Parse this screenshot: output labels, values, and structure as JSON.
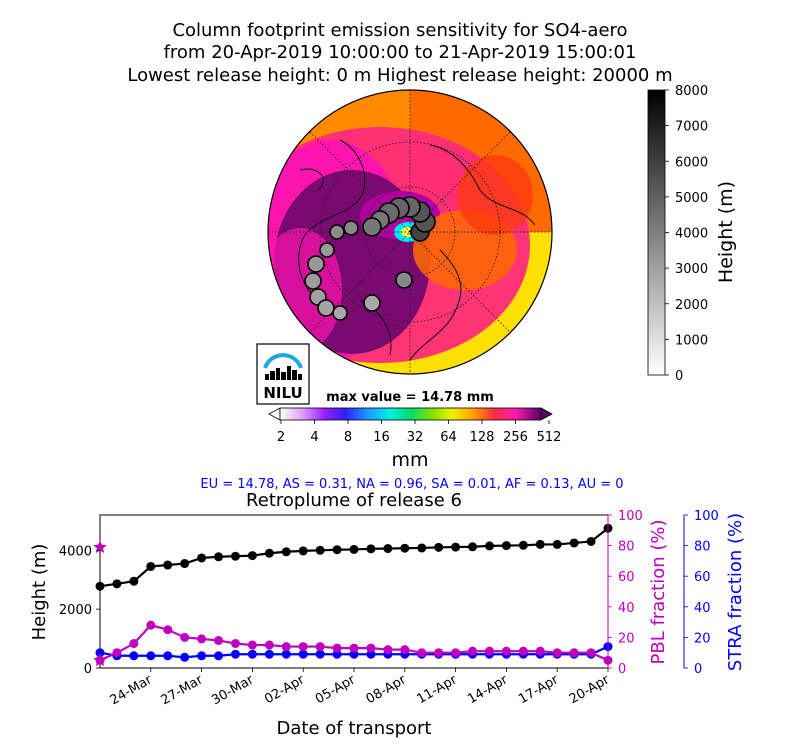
{
  "header": {
    "title_line1": "Column footprint emission sensitivity for SO4-aero",
    "title_line2": "from 20-Apr-2019 10:00:00 to 21-Apr-2019 15:00:01",
    "title_line3": "Lowest release height: 0 m       Highest release height: 20000 m"
  },
  "logo": {
    "text": "NILU"
  },
  "map": {
    "max_value_label": "max value = 14.78 mm",
    "colorbar_unit": "mm",
    "colorbar_ticks": [
      "2",
      "4",
      "8",
      "16",
      "32",
      "64",
      "128",
      "256",
      "512"
    ],
    "height_colorbar_label": "Height (m)",
    "height_colorbar_ticks": [
      "0",
      "1000",
      "2000",
      "3000",
      "4000",
      "5000",
      "6000",
      "7000",
      "8000"
    ]
  },
  "region_summary": "EU = 14.78,  AS = 0.31,  NA = 0.96,  SA = 0.01,  AF = 0.13,  AU = 0",
  "colors": {
    "height_series": "#000000",
    "pbl_series": "#bf00bf",
    "stra_series": "#0000ff"
  },
  "chart_data": {
    "type": "line",
    "title": "Retroplume of release 6",
    "xlabel": "Date of transport",
    "ylabel_left": "Height (m)",
    "ylabel_right1": "PBL fraction (%)",
    "ylabel_right2": "STRA fraction (%)",
    "ylim_left": [
      0,
      5200
    ],
    "ylim_right": [
      0,
      100
    ],
    "yticks_left": [
      "0",
      "2000",
      "4000"
    ],
    "yticks_right": [
      "0",
      "20",
      "40",
      "60",
      "80",
      "100"
    ],
    "xtick_labels": [
      "20-Apr",
      "17-Apr",
      "14-Apr",
      "11-Apr",
      "08-Apr",
      "05-Apr",
      "02-Apr",
      "30-Mar",
      "27-Mar",
      "24-Mar"
    ],
    "x_days_back": [
      0,
      1,
      2,
      3,
      4,
      5,
      6,
      7,
      8,
      9,
      10,
      11,
      12,
      13,
      14,
      15,
      16,
      17,
      18,
      19,
      20,
      21,
      22,
      23,
      24,
      25,
      26,
      27,
      28,
      29,
      30
    ],
    "series": [
      {
        "name": "Height (m)",
        "values": [
          4750,
          4300,
          4250,
          4200,
          4200,
          4170,
          4160,
          4150,
          4120,
          4110,
          4100,
          4080,
          4070,
          4060,
          4050,
          4030,
          4020,
          4000,
          3980,
          3950,
          3900,
          3820,
          3800,
          3780,
          3740,
          3550,
          3500,
          3450,
          2950,
          2860,
          2780
        ]
      },
      {
        "name": "PBL fraction (%)",
        "values": [
          5,
          10,
          10,
          10,
          11,
          11,
          11,
          11,
          11,
          10,
          10,
          10,
          12,
          12,
          13,
          13,
          13,
          14,
          14,
          14,
          15,
          15,
          16,
          18,
          19,
          20,
          25,
          28,
          16,
          10,
          5
        ]
      },
      {
        "name": "STRA fraction (%)",
        "values": [
          14,
          9,
          9,
          9,
          9,
          9,
          9,
          9,
          9,
          9,
          9,
          9,
          9,
          9,
          9,
          9,
          9,
          9,
          9,
          9,
          9,
          9,
          9,
          8,
          8,
          7,
          8,
          8,
          8,
          8,
          10
        ]
      }
    ],
    "release_markers": {
      "height": 4100,
      "pbl": 5
    }
  }
}
